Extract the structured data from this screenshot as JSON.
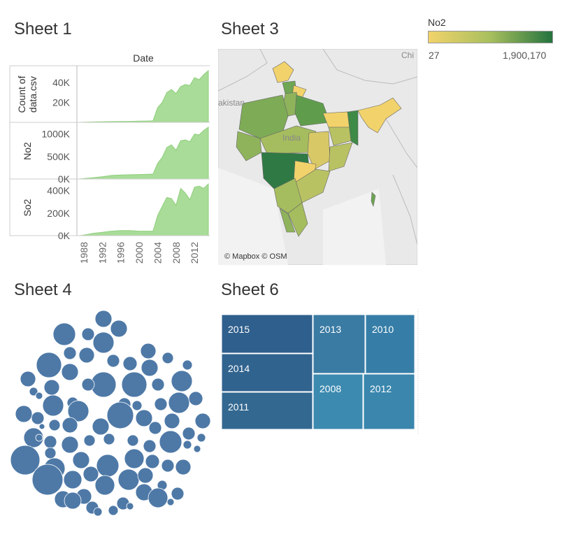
{
  "sheets": {
    "sheet1": "Sheet 1",
    "sheet3": "Sheet 3",
    "sheet4": "Sheet 4",
    "sheet6": "Sheet 6"
  },
  "legend": {
    "title": "No2",
    "min_label": "27",
    "max_label": "1,900,170",
    "color_low": "#f2d36b",
    "color_high": "#24733e"
  },
  "map": {
    "credit": "© Mapbox © OSM",
    "labels": [
      "akistan",
      "India",
      "Chi"
    ]
  },
  "chart_data": [
    {
      "type": "area",
      "title": "Sheet 1",
      "column_header": "Date",
      "x": [
        1987,
        1988,
        1990,
        1992,
        1994,
        1996,
        1998,
        2000,
        2002,
        2003,
        2004,
        2005,
        2006,
        2007,
        2008,
        2009,
        2010,
        2011,
        2012,
        2013,
        2014,
        2015
      ],
      "x_ticks": [
        "1988",
        "1992",
        "1996",
        "2000",
        "2004",
        "2008",
        "2012"
      ],
      "color": "#a8dc98",
      "series": [
        {
          "name": "Count of data.csv",
          "ylim": [
            0,
            52000
          ],
          "y_ticks": [
            "20K",
            "40K"
          ],
          "tick_values": [
            20000,
            40000
          ],
          "values": [
            0,
            200,
            400,
            600,
            800,
            900,
            1000,
            1200,
            1400,
            1600,
            15000,
            20000,
            30000,
            33000,
            29000,
            36000,
            38000,
            37000,
            45000,
            43000,
            48000,
            52000
          ]
        },
        {
          "name": "No2",
          "ylim": [
            0,
            1150000
          ],
          "y_ticks": [
            "0K",
            "500K",
            "1000K"
          ],
          "tick_values": [
            0,
            500000,
            1000000
          ],
          "values": [
            0,
            10000,
            30000,
            50000,
            80000,
            90000,
            95000,
            100000,
            105000,
            110000,
            350000,
            480000,
            700000,
            760000,
            640000,
            850000,
            870000,
            830000,
            1000000,
            980000,
            1080000,
            1150000
          ]
        },
        {
          "name": "So2",
          "ylim": [
            0,
            460000
          ],
          "y_ticks": [
            "0K",
            "200K",
            "400K"
          ],
          "tick_values": [
            0,
            200000,
            400000
          ],
          "values": [
            0,
            5000,
            20000,
            30000,
            40000,
            45000,
            45000,
            40000,
            40000,
            40000,
            180000,
            260000,
            340000,
            330000,
            270000,
            420000,
            380000,
            320000,
            430000,
            440000,
            420000,
            460000
          ]
        }
      ]
    },
    {
      "type": "table",
      "title": "Sheet 6",
      "chart_kind": "treemap",
      "categories": [
        "2015",
        "2014",
        "2011",
        "2013",
        "2010",
        "2008",
        "2012"
      ],
      "colors": [
        "#2f5f8c",
        "#31638f",
        "#336890",
        "#3a7ba3",
        "#367ea7",
        "#3c8ab0",
        "#3a86ad"
      ]
    },
    {
      "type": "scatter",
      "title": "Sheet 4",
      "chart_kind": "packed bubbles",
      "color": "#4e79a7"
    }
  ]
}
